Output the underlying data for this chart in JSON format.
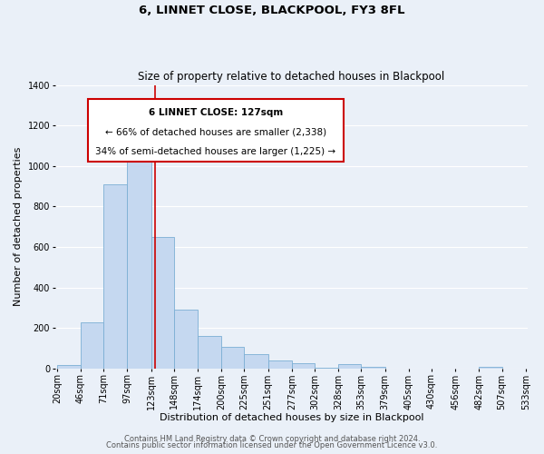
{
  "title": "6, LINNET CLOSE, BLACKPOOL, FY3 8FL",
  "subtitle": "Size of property relative to detached houses in Blackpool",
  "xlabel": "Distribution of detached houses by size in Blackpool",
  "ylabel": "Number of detached properties",
  "footer_line1": "Contains HM Land Registry data © Crown copyright and database right 2024.",
  "footer_line2": "Contains public sector information licensed under the Open Government Licence v3.0.",
  "bar_left_edges": [
    20,
    46,
    71,
    97,
    123,
    148,
    174,
    200,
    225,
    251,
    277,
    302,
    328,
    353,
    379,
    405,
    430,
    456,
    482,
    507
  ],
  "bar_widths": [
    26,
    25,
    26,
    26,
    25,
    26,
    26,
    25,
    26,
    26,
    25,
    26,
    25,
    26,
    26,
    25,
    26,
    26,
    25,
    26
  ],
  "bar_heights": [
    15,
    228,
    910,
    1070,
    650,
    290,
    160,
    105,
    70,
    40,
    25,
    5,
    20,
    10,
    0,
    0,
    0,
    0,
    10,
    0
  ],
  "bar_color": "#c5d8f0",
  "bar_edge_color": "#7bafd4",
  "reference_line_x": 127,
  "reference_line_color": "#cc0000",
  "ylim": [
    0,
    1400
  ],
  "yticks": [
    0,
    200,
    400,
    600,
    800,
    1000,
    1200,
    1400
  ],
  "xtick_labels": [
    "20sqm",
    "46sqm",
    "71sqm",
    "97sqm",
    "123sqm",
    "148sqm",
    "174sqm",
    "200sqm",
    "225sqm",
    "251sqm",
    "277sqm",
    "302sqm",
    "328sqm",
    "353sqm",
    "379sqm",
    "405sqm",
    "430sqm",
    "456sqm",
    "482sqm",
    "507sqm",
    "533sqm"
  ],
  "annotation_box_text_line1": "6 LINNET CLOSE: 127sqm",
  "annotation_box_text_line2": "← 66% of detached houses are smaller (2,338)",
  "annotation_box_text_line3": "34% of semi-detached houses are larger (1,225) →",
  "bg_color": "#eaf0f8",
  "grid_color": "#ffffff",
  "title_fontsize": 9.5,
  "subtitle_fontsize": 8.5,
  "axis_label_fontsize": 8,
  "tick_fontsize": 7,
  "annotation_fontsize": 7.5,
  "footer_fontsize": 6
}
